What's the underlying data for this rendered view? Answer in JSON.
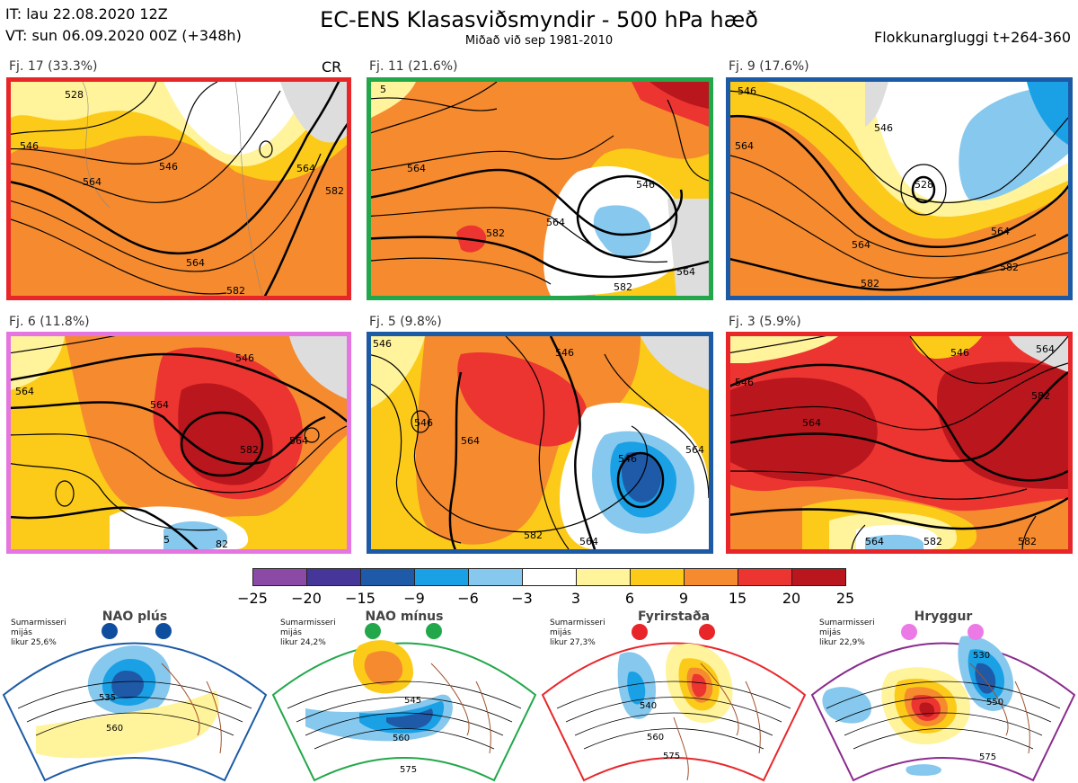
{
  "header": {
    "it_line": "IT: lau 22.08.2020 12Z",
    "vt_line": "VT: sun 06.09.2020 00Z  (+348h)",
    "title": "EC-ENS Klasasviðsmyndir - 500 hPa hæð",
    "subtitle": "Miðað við sep 1981-2010",
    "window": "Flokkunargluggi t+264-360"
  },
  "panels": [
    {
      "label": "Fj. 17 (33.3%)",
      "border": "#e8262a",
      "tag": "CR",
      "contours": [
        "546",
        "564",
        "564",
        "546",
        "564",
        "582",
        "528",
        "582"
      ]
    },
    {
      "label": "Fj. 11 (21.6%)",
      "border": "#22a74a",
      "contours": [
        "564",
        "546",
        "582",
        "564",
        "564",
        "582",
        "5"
      ]
    },
    {
      "label": "Fj. 9 (17.6%)",
      "border": "#1c5aa6",
      "contours": [
        "546",
        "564",
        "528",
        "546",
        "564",
        "582",
        "564",
        "582"
      ]
    },
    {
      "label": "Fj. 6 (11.8%)",
      "border": "#e575e0",
      "contours": [
        "546",
        "564",
        "564",
        "582",
        "564",
        "5",
        "82"
      ]
    },
    {
      "label": "Fj. 5 (9.8%)",
      "border": "#1c5aa6",
      "contours": [
        "546",
        "546",
        "564",
        "546",
        "564",
        "582",
        "564",
        "546"
      ]
    },
    {
      "label": "Fj. 3 (5.9%)",
      "border": "#e8262a",
      "contours": [
        "546",
        "564",
        "582",
        "546",
        "564",
        "564",
        "582",
        "582"
      ]
    }
  ],
  "colorbar": {
    "colors": [
      "#8a4aa6",
      "#46369a",
      "#1f5aa8",
      "#1aa0e4",
      "#86c8ee",
      "#ffffff",
      "#fff39b",
      "#fccb19",
      "#f58a2e",
      "#ec3430",
      "#b9161d"
    ],
    "ticks": [
      "−25",
      "−20",
      "−15",
      "−9",
      "−6",
      "−3",
      "3",
      "6",
      "9",
      "15",
      "20",
      "25"
    ]
  },
  "regimes": [
    {
      "name": "NAO plús",
      "info": [
        "Sumarmisseri",
        "mijás",
        "likur 25,6%"
      ],
      "frame": "#1c5aa6",
      "dot": "#0f4e9e",
      "contours": [
        "535",
        "560"
      ]
    },
    {
      "name": "NAO mínus",
      "info": [
        "Sumarmisseri",
        "mijás",
        "likur 24,2%"
      ],
      "frame": "#22a74a",
      "dot": "#22a74a",
      "contours": [
        "545",
        "560",
        "575"
      ]
    },
    {
      "name": "Fyrirstaða",
      "info": [
        "Sumarmisseri",
        "mijás",
        "likur 27,3%"
      ],
      "frame": "#e8262a",
      "dot": "#e8262a",
      "contours": [
        "540",
        "560",
        "575"
      ]
    },
    {
      "name": "Hryggur",
      "info": [
        "Sumarmisseri",
        "mijás",
        "likur 22,9%"
      ],
      "frame": "#8a2b8e",
      "dot": "#ec7ae6",
      "contours": [
        "530",
        "550",
        "575"
      ]
    }
  ]
}
